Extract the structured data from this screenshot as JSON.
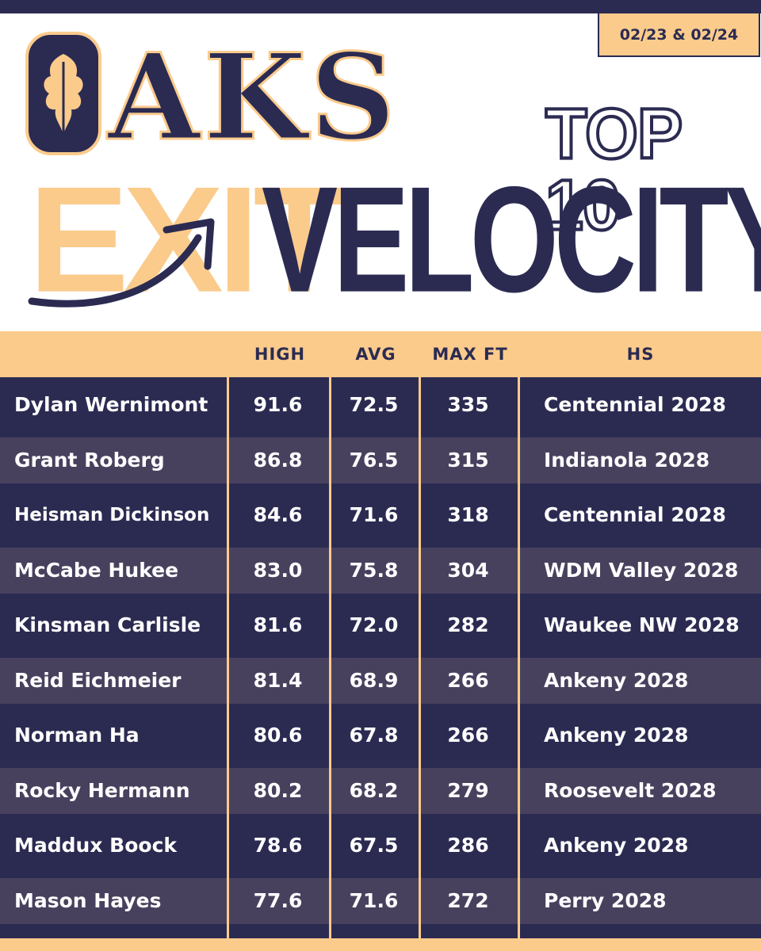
{
  "date_range": "02/23 & 02/24",
  "logo_text": "OAKS",
  "title": {
    "line1": "TOP 10",
    "word1": "EXIT",
    "word2": "VELOCITY"
  },
  "columns": [
    "",
    "HIGH",
    "AVG",
    "MAX FT",
    "HS"
  ],
  "rows": [
    {
      "name": "Dylan Wernimont",
      "high": "91.6",
      "avg": "72.5",
      "max_ft": "335",
      "hs": "Centennial 2028"
    },
    {
      "name": "Grant Roberg",
      "high": "86.8",
      "avg": "76.5",
      "max_ft": "315",
      "hs": "Indianola 2028"
    },
    {
      "name": "Heisman Dickinson",
      "high": "84.6",
      "avg": "71.6",
      "max_ft": "318",
      "hs": "Centennial 2028"
    },
    {
      "name": "McCabe Hukee",
      "high": "83.0",
      "avg": "75.8",
      "max_ft": "304",
      "hs": "WDM Valley 2028"
    },
    {
      "name": "Kinsman Carlisle",
      "high": "81.6",
      "avg": "72.0",
      "max_ft": "282",
      "hs": "Waukee NW 2028"
    },
    {
      "name": "Reid Eichmeier",
      "high": "81.4",
      "avg": "68.9",
      "max_ft": "266",
      "hs": "Ankeny 2028"
    },
    {
      "name": "Norman Ha",
      "high": "80.6",
      "avg": "67.8",
      "max_ft": "266",
      "hs": "Ankeny 2028"
    },
    {
      "name": "Rocky Hermann",
      "high": "80.2",
      "avg": "68.2",
      "max_ft": "279",
      "hs": "Roosevelt 2028"
    },
    {
      "name": "Maddux Boock",
      "high": "78.6",
      "avg": "67.5",
      "max_ft": "286",
      "hs": "Ankeny 2028"
    },
    {
      "name": "Mason Hayes",
      "high": "77.6",
      "avg": "71.6",
      "max_ft": "272",
      "hs": "Perry 2028"
    }
  ],
  "colors": {
    "navy": "#2b2b52",
    "cream": "#fbcb8c",
    "alt_row": "#48415e"
  }
}
